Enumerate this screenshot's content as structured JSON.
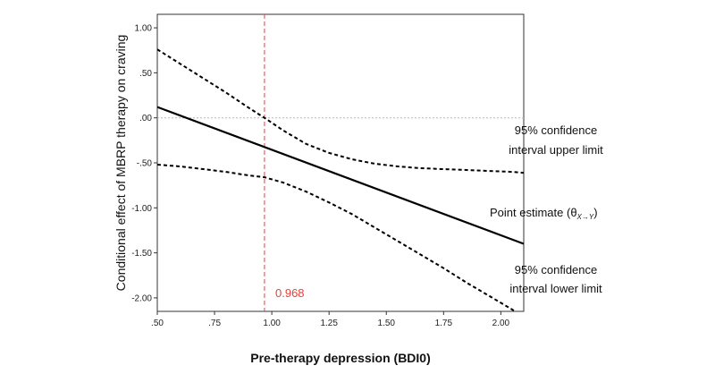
{
  "chart_data": {
    "type": "line",
    "title": "",
    "xlabel": "Pre-therapy depression (BDI0)",
    "ylabel": "Conditional effect of MBRP therapy on craving",
    "xlim": [
      0.5,
      2.1
    ],
    "ylim": [
      -2.15,
      1.15
    ],
    "x_ticks": [
      ".50",
      ".75",
      "1.00",
      "1.25",
      "1.50",
      "1.75",
      "2.00"
    ],
    "y_ticks": [
      "1.00",
      ".50",
      ".00",
      "-.50",
      "-1.00",
      "-1.50",
      "-2.00"
    ],
    "grid": false,
    "series": [
      {
        "x": [
          0.5,
          2.1
        ],
        "y": [
          0.12,
          -1.4
        ],
        "style": "solid"
      },
      {
        "x": [
          0.5,
          0.6,
          0.7,
          0.8,
          0.9,
          0.968,
          1.05,
          1.15,
          1.25,
          1.35,
          1.45,
          1.55,
          1.65,
          1.75,
          1.85,
          1.95,
          2.05,
          2.1
        ],
        "y": [
          0.76,
          0.6,
          0.44,
          0.28,
          0.11,
          0.0,
          -0.14,
          -0.29,
          -0.39,
          -0.46,
          -0.51,
          -0.54,
          -0.56,
          -0.57,
          -0.58,
          -0.59,
          -0.6,
          -0.61
        ],
        "style": "dashed"
      },
      {
        "x": [
          0.5,
          0.6,
          0.7,
          0.8,
          0.9,
          0.968,
          1.05,
          1.15,
          1.25,
          1.35,
          1.45,
          1.55,
          1.65,
          1.75,
          1.85,
          1.95,
          2.05,
          2.1
        ],
        "y": [
          -0.52,
          -0.54,
          -0.57,
          -0.6,
          -0.64,
          -0.66,
          -0.72,
          -0.82,
          -0.94,
          -1.07,
          -1.22,
          -1.37,
          -1.52,
          -1.67,
          -1.83,
          -1.98,
          -2.13,
          -2.22
        ],
        "style": "dashed"
      }
    ],
    "reference_lines": {
      "horizontal_y": 0.0,
      "vertical_x": 0.968,
      "vertical_label": "0.968",
      "vertical_color": "#e8403a"
    },
    "annotations": {
      "upper_line1": "95% confidence",
      "upper_line2": "interval upper limit",
      "point_main": "Point estimate (θ",
      "point_sub": "X→Y",
      "point_close": ")",
      "lower_line1": "95% confidence",
      "lower_line2": "interval lower limit"
    }
  }
}
